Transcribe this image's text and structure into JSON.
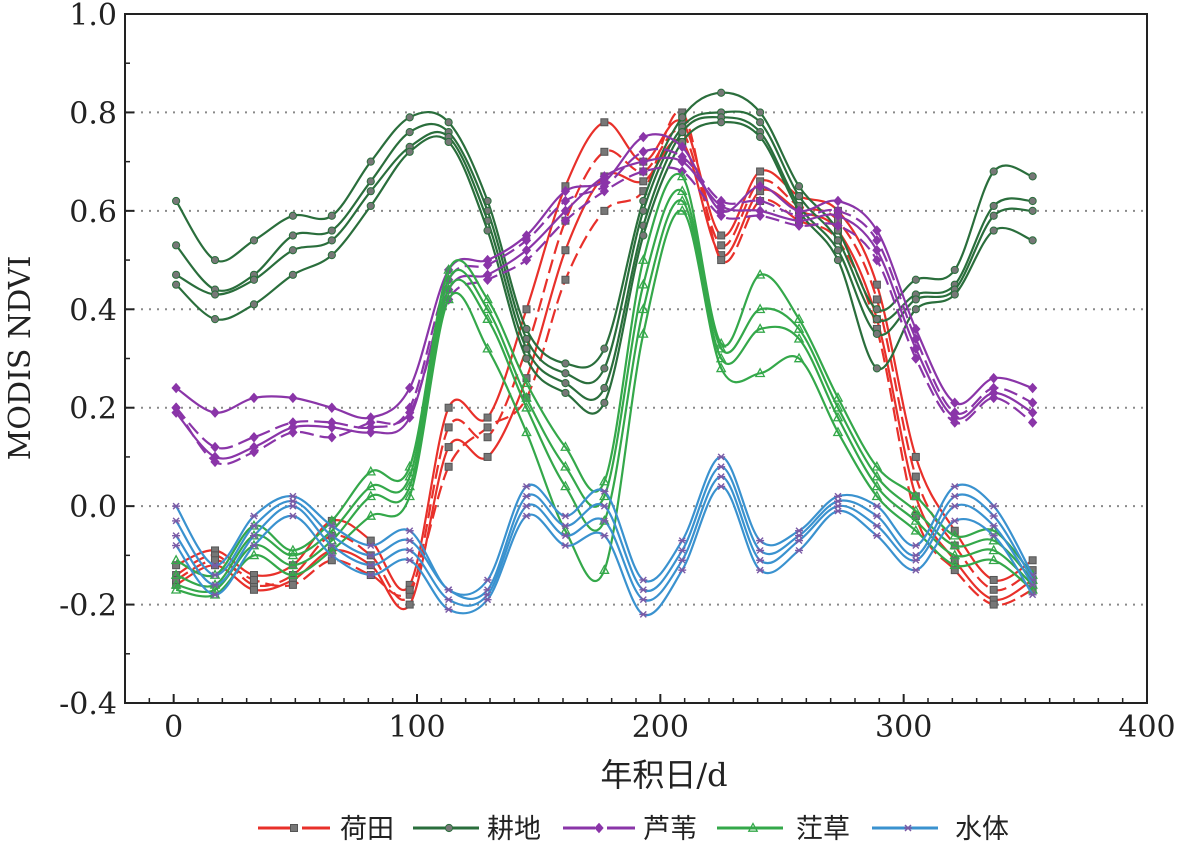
{
  "chart_data": {
    "type": "line",
    "xlabel": "年积日/d",
    "ylabel": "MODIS NDVI",
    "xlim": [
      -20,
      400
    ],
    "ylim": [
      -0.4,
      1.0
    ],
    "xticks": [
      0,
      100,
      200,
      300,
      400
    ],
    "yticks": [
      -0.4,
      -0.2,
      0.0,
      0.2,
      0.4,
      0.6,
      0.8,
      1.0
    ],
    "ytick_labels": [
      "-0.4",
      "-0.2",
      "0.0",
      "0.2",
      "0.4",
      "0.6",
      "0.8",
      "1.0"
    ],
    "xtick_labels": [
      "0",
      "100",
      "200",
      "300",
      "400"
    ],
    "grid": "horizontal dotted at 0.8, 0.6, 0.4, 0.2, 0.0, -0.2",
    "legend_position": "bottom",
    "series": [
      {
        "name": "荷田",
        "color": "#e8302a",
        "marker": "square",
        "x": [
          1,
          17,
          33,
          49,
          65,
          81,
          97,
          113,
          129,
          145,
          161,
          177,
          193,
          209,
          225,
          241,
          257,
          273,
          289,
          305,
          321,
          337,
          353
        ],
        "curves": [
          [
            -0.12,
            -0.09,
            -0.14,
            -0.12,
            -0.03,
            -0.07,
            -0.16,
            0.2,
            0.18,
            0.4,
            0.65,
            0.78,
            0.7,
            0.78,
            0.55,
            0.68,
            0.63,
            0.6,
            0.45,
            0.1,
            -0.05,
            -0.15,
            -0.11
          ],
          [
            -0.14,
            -0.1,
            -0.16,
            -0.14,
            -0.06,
            -0.1,
            -0.18,
            0.16,
            0.14,
            0.32,
            0.58,
            0.72,
            0.68,
            0.76,
            0.53,
            0.66,
            0.61,
            0.58,
            0.42,
            0.06,
            -0.08,
            -0.17,
            -0.13
          ],
          [
            -0.16,
            -0.12,
            -0.17,
            -0.15,
            -0.09,
            -0.12,
            -0.2,
            0.12,
            0.1,
            0.26,
            0.52,
            0.67,
            0.66,
            0.74,
            0.51,
            0.64,
            0.6,
            0.56,
            0.38,
            0.02,
            -0.11,
            -0.19,
            -0.15
          ],
          [
            -0.15,
            -0.11,
            -0.15,
            -0.16,
            -0.11,
            -0.14,
            -0.17,
            0.08,
            0.16,
            0.22,
            0.46,
            0.6,
            0.64,
            0.8,
            0.5,
            0.62,
            0.58,
            0.54,
            0.36,
            -0.02,
            -0.13,
            -0.2,
            -0.17
          ]
        ]
      },
      {
        "name": "耕地",
        "color": "#2a6e3c",
        "marker": "circle",
        "x": [
          1,
          17,
          33,
          49,
          65,
          81,
          97,
          113,
          129,
          145,
          161,
          177,
          193,
          209,
          225,
          241,
          257,
          273,
          289,
          305,
          321,
          337,
          353
        ],
        "curves": [
          [
            0.62,
            0.5,
            0.54,
            0.59,
            0.59,
            0.7,
            0.79,
            0.78,
            0.62,
            0.36,
            0.29,
            0.32,
            0.62,
            0.79,
            0.84,
            0.8,
            0.65,
            0.56,
            0.4,
            0.46,
            0.48,
            0.68,
            0.67
          ],
          [
            0.53,
            0.44,
            0.47,
            0.55,
            0.56,
            0.66,
            0.76,
            0.76,
            0.6,
            0.34,
            0.27,
            0.28,
            0.6,
            0.77,
            0.8,
            0.78,
            0.63,
            0.54,
            0.38,
            0.43,
            0.45,
            0.61,
            0.62
          ],
          [
            0.47,
            0.43,
            0.46,
            0.52,
            0.54,
            0.64,
            0.73,
            0.75,
            0.58,
            0.32,
            0.25,
            0.24,
            0.57,
            0.76,
            0.79,
            0.76,
            0.61,
            0.52,
            0.35,
            0.42,
            0.44,
            0.59,
            0.6
          ],
          [
            0.45,
            0.38,
            0.41,
            0.47,
            0.51,
            0.61,
            0.72,
            0.74,
            0.56,
            0.3,
            0.23,
            0.21,
            0.55,
            0.74,
            0.78,
            0.75,
            0.6,
            0.5,
            0.28,
            0.4,
            0.43,
            0.56,
            0.54
          ]
        ]
      },
      {
        "name": "芦苇",
        "color": "#8a35a8",
        "marker": "diamond",
        "x": [
          1,
          17,
          33,
          49,
          65,
          81,
          97,
          113,
          129,
          145,
          161,
          177,
          193,
          209,
          225,
          241,
          257,
          273,
          289,
          305,
          321,
          337,
          353
        ],
        "curves": [
          [
            0.24,
            0.19,
            0.22,
            0.22,
            0.2,
            0.18,
            0.24,
            0.48,
            0.5,
            0.55,
            0.64,
            0.66,
            0.75,
            0.73,
            0.6,
            0.65,
            0.6,
            0.62,
            0.56,
            0.36,
            0.21,
            0.26,
            0.24
          ],
          [
            0.2,
            0.12,
            0.14,
            0.17,
            0.17,
            0.16,
            0.2,
            0.46,
            0.49,
            0.54,
            0.62,
            0.65,
            0.72,
            0.71,
            0.62,
            0.62,
            0.59,
            0.6,
            0.54,
            0.34,
            0.19,
            0.24,
            0.21
          ],
          [
            0.19,
            0.1,
            0.12,
            0.16,
            0.16,
            0.15,
            0.18,
            0.44,
            0.47,
            0.52,
            0.6,
            0.67,
            0.7,
            0.7,
            0.61,
            0.6,
            0.58,
            0.59,
            0.52,
            0.32,
            0.18,
            0.23,
            0.19
          ],
          [
            0.2,
            0.09,
            0.11,
            0.15,
            0.14,
            0.17,
            0.19,
            0.42,
            0.46,
            0.5,
            0.58,
            0.64,
            0.68,
            0.68,
            0.59,
            0.59,
            0.57,
            0.57,
            0.5,
            0.3,
            0.17,
            0.22,
            0.17
          ]
        ]
      },
      {
        "name": "茳草",
        "color": "#34a84a",
        "marker": "triangle",
        "x": [
          1,
          17,
          33,
          49,
          65,
          81,
          97,
          113,
          129,
          145,
          161,
          177,
          193,
          209,
          225,
          241,
          257,
          273,
          289,
          305,
          321,
          337,
          353
        ],
        "curves": [
          [
            -0.11,
            -0.14,
            -0.04,
            -0.09,
            -0.03,
            0.07,
            0.08,
            0.48,
            0.42,
            0.25,
            0.12,
            0.05,
            0.5,
            0.67,
            0.33,
            0.47,
            0.38,
            0.22,
            0.08,
            0.02,
            -0.06,
            -0.05,
            -0.14
          ],
          [
            -0.14,
            -0.16,
            -0.06,
            -0.1,
            -0.05,
            0.04,
            0.06,
            0.46,
            0.4,
            0.22,
            0.08,
            0.02,
            0.45,
            0.64,
            0.32,
            0.4,
            0.36,
            0.2,
            0.06,
            -0.01,
            -0.08,
            -0.07,
            -0.15
          ],
          [
            -0.16,
            -0.17,
            -0.08,
            -0.12,
            -0.07,
            0.02,
            0.04,
            0.44,
            0.38,
            0.2,
            0.04,
            -0.03,
            0.4,
            0.62,
            0.3,
            0.36,
            0.34,
            0.18,
            0.04,
            -0.03,
            -0.1,
            -0.09,
            -0.16
          ],
          [
            -0.17,
            -0.18,
            -0.1,
            -0.14,
            -0.09,
            -0.02,
            0.02,
            0.42,
            0.32,
            0.15,
            -0.05,
            -0.13,
            0.35,
            0.6,
            0.28,
            0.27,
            0.3,
            0.15,
            0.02,
            -0.05,
            -0.12,
            -0.11,
            -0.17
          ]
        ]
      },
      {
        "name": "水体",
        "color": "#3a92cf",
        "marker": "star",
        "x": [
          1,
          17,
          33,
          49,
          65,
          81,
          97,
          113,
          129,
          145,
          161,
          177,
          193,
          209,
          225,
          241,
          257,
          273,
          289,
          305,
          321,
          337,
          353
        ],
        "curves": [
          [
            0.0,
            -0.12,
            -0.02,
            0.02,
            -0.04,
            -0.08,
            -0.05,
            -0.17,
            -0.15,
            0.04,
            -0.02,
            0.03,
            -0.15,
            -0.07,
            0.1,
            -0.07,
            -0.05,
            0.02,
            0.0,
            -0.08,
            0.04,
            0.0,
            -0.14
          ],
          [
            -0.03,
            -0.14,
            -0.04,
            0.01,
            -0.06,
            -0.1,
            -0.07,
            -0.17,
            -0.17,
            0.02,
            -0.04,
            0.0,
            -0.17,
            -0.09,
            0.08,
            -0.09,
            -0.06,
            0.01,
            -0.02,
            -0.1,
            0.02,
            -0.02,
            -0.15
          ],
          [
            -0.06,
            -0.16,
            -0.06,
            0.0,
            -0.08,
            -0.12,
            -0.09,
            -0.19,
            -0.18,
            0.0,
            -0.06,
            -0.03,
            -0.19,
            -0.11,
            0.06,
            -0.11,
            -0.07,
            0.0,
            -0.04,
            -0.11,
            0.0,
            -0.04,
            -0.16
          ],
          [
            -0.08,
            -0.18,
            -0.08,
            -0.02,
            -0.1,
            -0.14,
            -0.11,
            -0.21,
            -0.19,
            -0.02,
            -0.08,
            -0.06,
            -0.22,
            -0.13,
            0.04,
            -0.13,
            -0.09,
            -0.01,
            -0.06,
            -0.13,
            -0.03,
            -0.06,
            -0.18
          ]
        ]
      }
    ]
  }
}
